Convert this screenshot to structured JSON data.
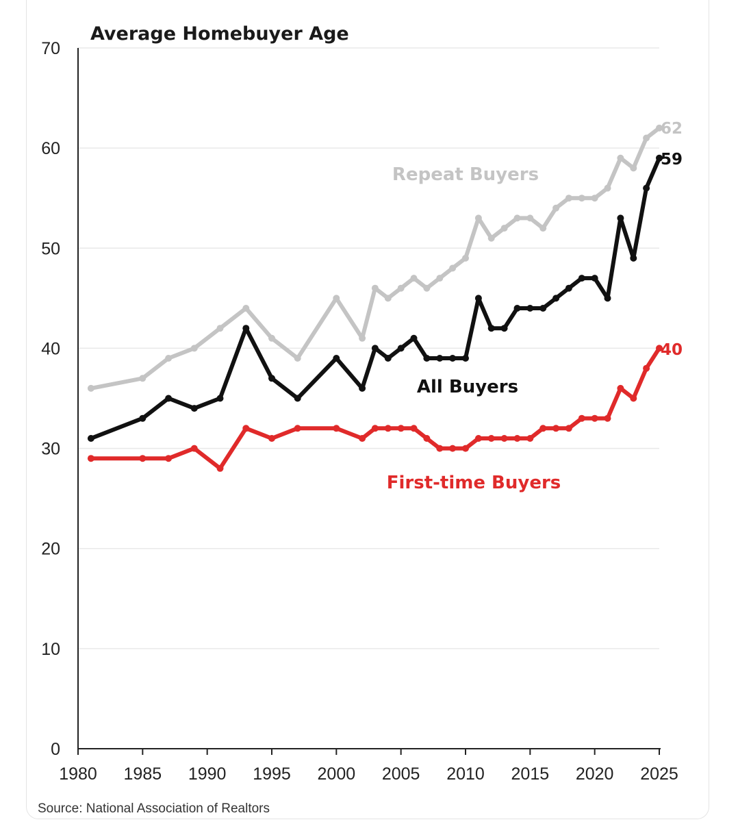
{
  "chart_data": {
    "type": "line",
    "title": "Average Homebuyer Age",
    "source": "Source: National Association of Realtors",
    "xlim": [
      1980,
      2025
    ],
    "ylim": [
      0,
      70
    ],
    "x_ticks": [
      "1980",
      "1985",
      "1990",
      "1995",
      "2000",
      "2005",
      "2010",
      "2015",
      "2020",
      "2025"
    ],
    "y_ticks": [
      "0",
      "10",
      "20",
      "30",
      "40",
      "50",
      "60",
      "70"
    ],
    "grid": "horizontal",
    "series": [
      {
        "name": "Repeat Buyers",
        "color": "#c4c4c4",
        "end_label": "62",
        "x": [
          1981,
          1985,
          1987,
          1989,
          1991,
          1993,
          1995,
          1997,
          2000,
          2002,
          2003,
          2004,
          2005,
          2006,
          2007,
          2008,
          2009,
          2010,
          2011,
          2012,
          2013,
          2014,
          2015,
          2016,
          2017,
          2018,
          2019,
          2020,
          2021,
          2022,
          2023,
          2024,
          2025
        ],
        "y": [
          36,
          37,
          39,
          40,
          42,
          44,
          41,
          39,
          45,
          41,
          46,
          45,
          46,
          47,
          46,
          47,
          48,
          49,
          53,
          51,
          52,
          53,
          53,
          52,
          54,
          55,
          55,
          55,
          56,
          59,
          58,
          61,
          62
        ]
      },
      {
        "name": "All Buyers",
        "color": "#111111",
        "end_label": "59",
        "x": [
          1981,
          1985,
          1987,
          1989,
          1991,
          1993,
          1995,
          1997,
          2000,
          2002,
          2003,
          2004,
          2005,
          2006,
          2007,
          2008,
          2009,
          2010,
          2011,
          2012,
          2013,
          2014,
          2015,
          2016,
          2017,
          2018,
          2019,
          2020,
          2021,
          2022,
          2023,
          2024,
          2025
        ],
        "y": [
          31,
          33,
          35,
          34,
          35,
          42,
          37,
          35,
          39,
          36,
          40,
          39,
          40,
          41,
          39,
          39,
          39,
          39,
          45,
          42,
          42,
          44,
          44,
          44,
          45,
          46,
          47,
          47,
          45,
          53,
          49,
          56,
          59
        ]
      },
      {
        "name": "First-time Buyers",
        "color": "#e02a2a",
        "end_label": "40",
        "x": [
          1981,
          1985,
          1987,
          1989,
          1991,
          1993,
          1995,
          1997,
          2000,
          2002,
          2003,
          2004,
          2005,
          2006,
          2007,
          2008,
          2009,
          2010,
          2011,
          2012,
          2013,
          2014,
          2015,
          2016,
          2017,
          2018,
          2019,
          2020,
          2021,
          2022,
          2023,
          2024,
          2025
        ],
        "y": [
          29,
          29,
          29,
          30,
          28,
          32,
          31,
          32,
          32,
          31,
          32,
          32,
          32,
          32,
          31,
          30,
          30,
          30,
          31,
          31,
          31,
          31,
          31,
          32,
          32,
          32,
          33,
          33,
          33,
          36,
          35,
          38,
          40
        ]
      }
    ]
  }
}
